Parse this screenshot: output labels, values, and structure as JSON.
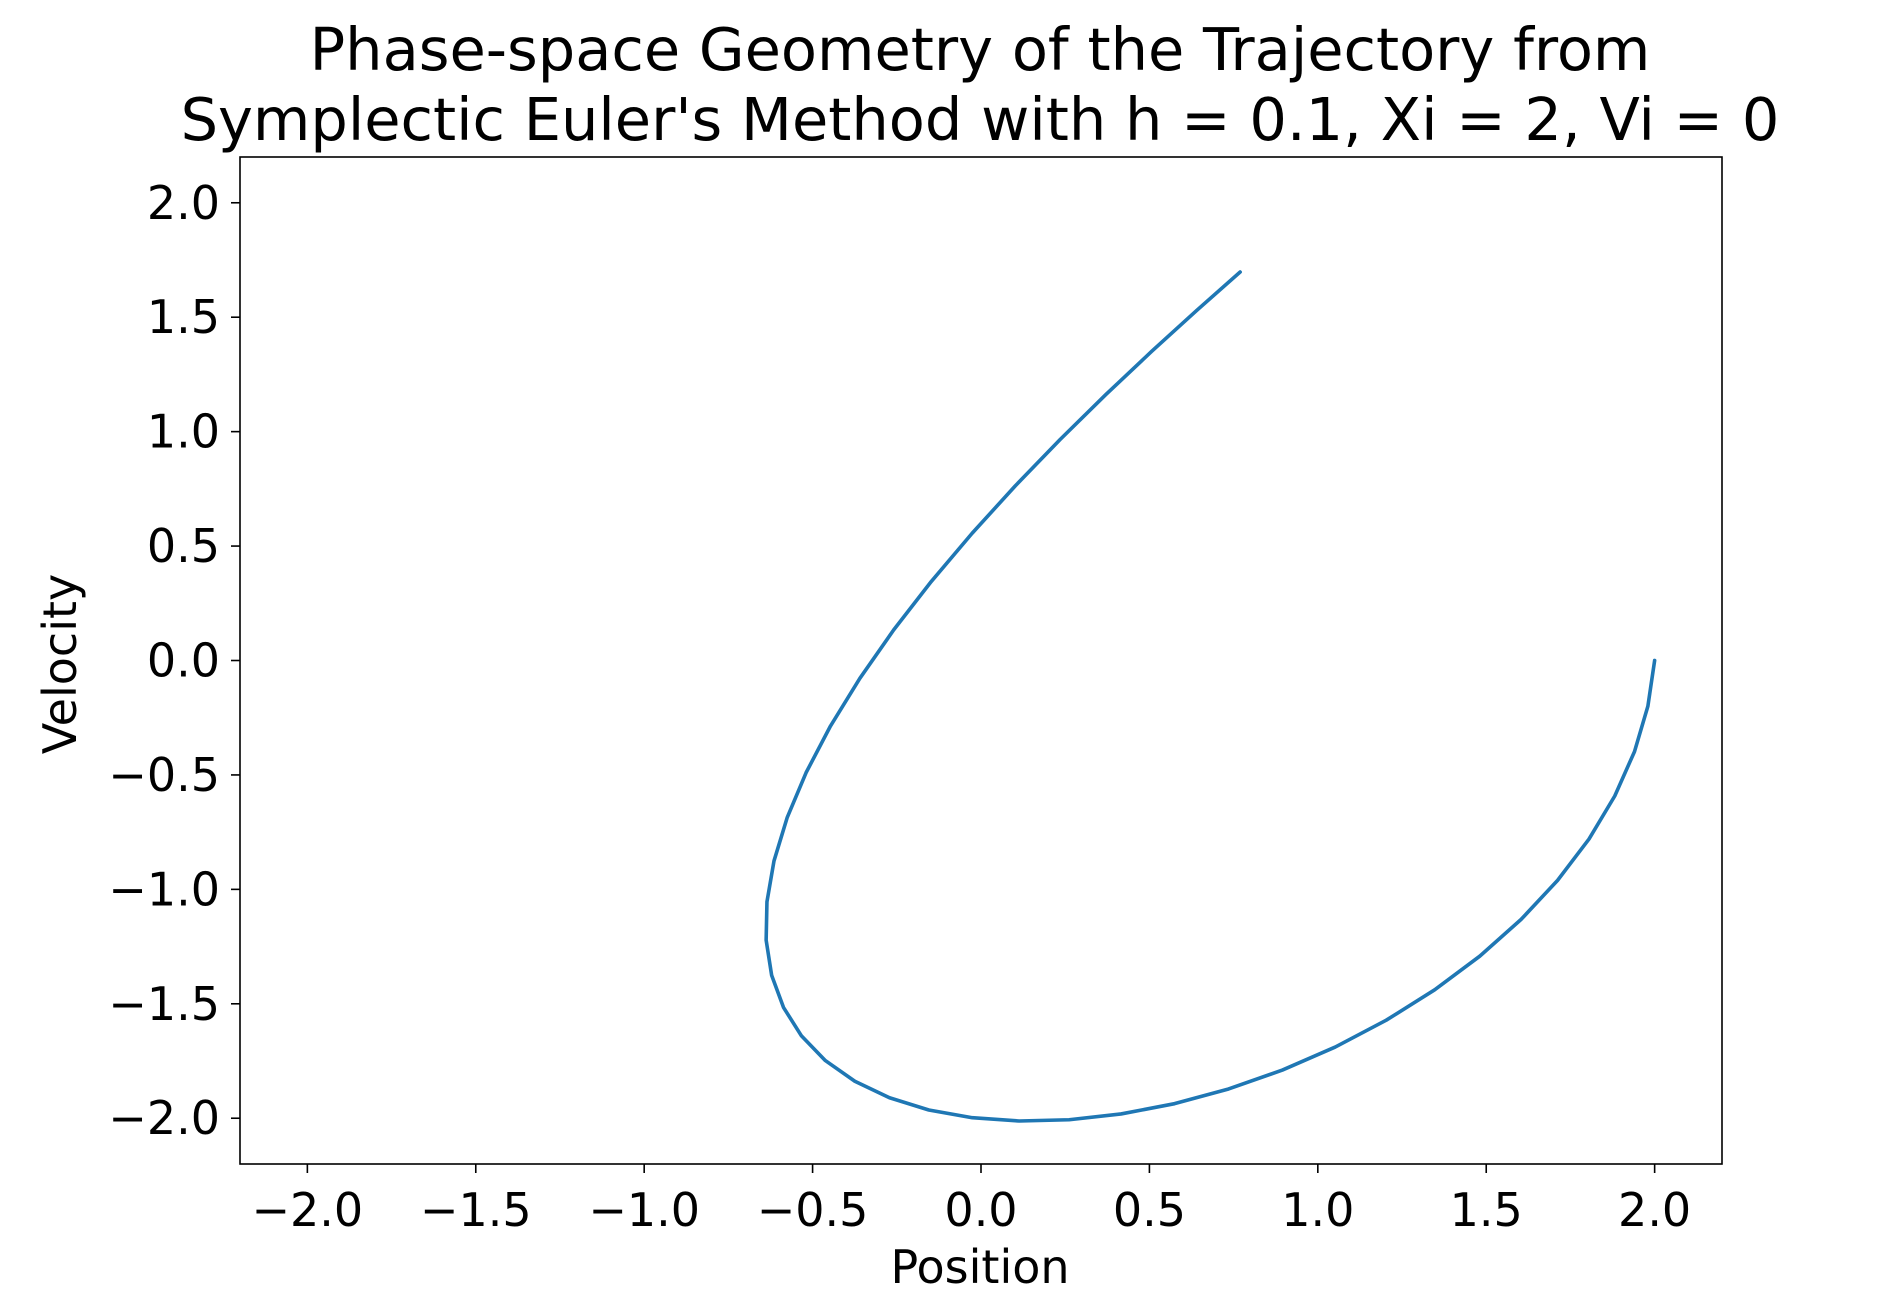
{
  "chart_data": {
    "type": "line",
    "title": [
      "Phase-space Geometry of the Trajectory from",
      "Symplectic Euler's Method with h = 0.1, Xi = 2, Vi = 0"
    ],
    "xlabel": "Position",
    "ylabel": "Velocity",
    "xlim": [
      -2.2,
      2.2
    ],
    "ylim": [
      -2.2,
      2.2
    ],
    "xticks": [
      -2.0,
      -1.5,
      -1.0,
      -0.5,
      0.0,
      0.5,
      1.0,
      1.5,
      2.0
    ],
    "yticks": [
      -2.0,
      -1.5,
      -1.0,
      -0.5,
      0.0,
      0.5,
      1.0,
      1.5,
      2.0
    ],
    "xtick_labels": [
      "−2.0",
      "−1.5",
      "−1.0",
      "−0.5",
      "0.0",
      "0.5",
      "1.0",
      "1.5",
      "2.0"
    ],
    "ytick_labels": [
      "−2.0",
      "−1.5",
      "−1.0",
      "−0.5",
      "0.0",
      "0.5",
      "1.0",
      "1.5",
      "2.0"
    ],
    "grid": false,
    "legend": "none",
    "series": [
      {
        "color": "#1f77b4",
        "x": [
          2.0,
          1.9799,
          1.9402,
          1.8816,
          1.8051,
          1.7118,
          1.6032,
          1.481,
          1.3469,
          1.2031,
          1.0516,
          0.8948,
          0.735,
          0.5746,
          0.416,
          0.2616,
          0.1136,
          -0.0258,
          -0.1549,
          -0.2717,
          -0.3746,
          -0.4621,
          -0.533,
          -0.5864,
          -0.6215,
          -0.6379,
          -0.6355,
          -0.6146,
          -0.5756,
          -0.5193,
          -0.4469,
          -0.3596,
          -0.2592,
          -0.1474,
          -0.0263,
          0.1021,
          0.2353,
          0.371,
          0.5068,
          0.6404,
          0.7694
        ],
        "y": [
          0.0,
          -0.2,
          -0.398,
          -0.592,
          -0.7802,
          -0.9607,
          -1.1318,
          -1.2917,
          -1.4389,
          -1.5717,
          -1.689,
          -1.7895,
          -1.8722,
          -1.9364,
          -1.9813,
          -2.0066,
          -2.0121,
          -1.9978,
          -1.9639,
          -1.9106,
          -1.8385,
          -1.7481,
          -1.6403,
          -1.5159,
          -1.376,
          -1.2218,
          -1.0546,
          -0.8758,
          -0.687,
          -0.49,
          -0.2863,
          -0.0778,
          0.1337,
          0.3456,
          0.5561,
          0.7635,
          0.9661,
          1.1624,
          1.3507,
          1.5295,
          1.6974
        ]
      }
    ]
  }
}
